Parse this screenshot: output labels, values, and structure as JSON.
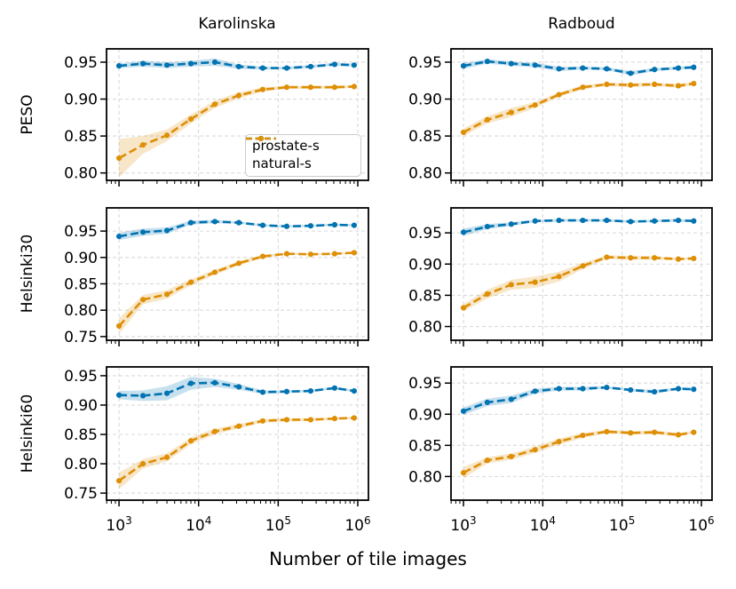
{
  "figure": {
    "column_titles": [
      "Karolinska",
      "Radboud"
    ],
    "row_labels": [
      "PESO",
      "Helsinki30",
      "Helsinki60"
    ],
    "xlabel": "Number of tile images",
    "legend": [
      {
        "label": "prostate-s",
        "color": "#0173b2"
      },
      {
        "label": "natural-s",
        "color": "#de8f05"
      }
    ],
    "colors": {
      "prostate_s": "#0173b2",
      "natural_s": "#de8f05",
      "grid": "#d9d9d9",
      "spine": "#000000",
      "legend_border": "#cccccc"
    }
  },
  "chart_data": [
    {
      "type": "line",
      "row": "PESO",
      "col": "Karolinska",
      "xscale": "log",
      "grid": true,
      "line_style": "dashed-with-dots",
      "x": [
        1000,
        2000,
        4000,
        8000,
        16000,
        32000,
        64000,
        128000,
        256000,
        512000,
        900000
      ],
      "xticks_log10": [
        3,
        4,
        5,
        6
      ],
      "xlim_log10": [
        2.843,
        6.134
      ],
      "ylim": [
        0.79,
        0.968
      ],
      "yticks": [
        0.8,
        0.85,
        0.9,
        0.95
      ],
      "series": [
        {
          "name": "prostate-s",
          "color": "#0173b2",
          "values": [
            0.945,
            0.948,
            0.946,
            0.948,
            0.95,
            0.944,
            0.942,
            0.942,
            0.944,
            0.947,
            0.946
          ],
          "band": [
            0.003,
            0.004,
            0.004,
            0.004,
            0.005,
            0.003,
            0.002,
            0.002,
            0.002,
            0.002,
            0.002
          ]
        },
        {
          "name": "natural-s",
          "color": "#de8f05",
          "values": [
            0.82,
            0.838,
            0.851,
            0.873,
            0.893,
            0.905,
            0.913,
            0.916,
            0.916,
            0.916,
            0.917
          ],
          "band": [
            0.026,
            0.012,
            0.008,
            0.006,
            0.005,
            0.004,
            0.003,
            0.002,
            0.002,
            0.002,
            0.002
          ]
        }
      ]
    },
    {
      "type": "line",
      "row": "PESO",
      "col": "Radboud",
      "xscale": "log",
      "grid": true,
      "line_style": "dashed-with-dots",
      "x": [
        1000,
        2000,
        4000,
        8000,
        16000,
        32000,
        64000,
        128000,
        256000,
        512000,
        800000
      ],
      "xticks_log10": [
        3,
        4,
        5,
        6
      ],
      "xlim_log10": [
        2.843,
        6.134
      ],
      "ylim": [
        0.79,
        0.968
      ],
      "yticks": [
        0.8,
        0.85,
        0.9,
        0.95
      ],
      "series": [
        {
          "name": "prostate-s",
          "color": "#0173b2",
          "values": [
            0.945,
            0.951,
            0.948,
            0.946,
            0.941,
            0.942,
            0.941,
            0.935,
            0.94,
            0.942,
            0.943
          ],
          "band": [
            0.004,
            0.003,
            0.003,
            0.003,
            0.003,
            0.002,
            0.002,
            0.003,
            0.002,
            0.002,
            0.002
          ]
        },
        {
          "name": "natural-s",
          "color": "#de8f05",
          "values": [
            0.855,
            0.872,
            0.882,
            0.892,
            0.906,
            0.916,
            0.92,
            0.919,
            0.92,
            0.918,
            0.921
          ],
          "band": [
            0.005,
            0.005,
            0.006,
            0.004,
            0.003,
            0.003,
            0.002,
            0.003,
            0.002,
            0.003,
            0.002
          ]
        }
      ]
    },
    {
      "type": "line",
      "row": "Helsinki30",
      "col": "Karolinska",
      "xscale": "log",
      "grid": true,
      "line_style": "dashed-with-dots",
      "x": [
        1000,
        2000,
        4000,
        8000,
        16000,
        32000,
        64000,
        128000,
        256000,
        512000,
        900000
      ],
      "xticks_log10": [
        3,
        4,
        5,
        6
      ],
      "xlim_log10": [
        2.843,
        6.134
      ],
      "ylim": [
        0.743,
        0.994
      ],
      "yticks": [
        0.75,
        0.8,
        0.85,
        0.9,
        0.95
      ],
      "series": [
        {
          "name": "prostate-s",
          "color": "#0173b2",
          "values": [
            0.94,
            0.948,
            0.951,
            0.966,
            0.968,
            0.966,
            0.961,
            0.959,
            0.96,
            0.962,
            0.961
          ],
          "band": [
            0.007,
            0.007,
            0.006,
            0.004,
            0.003,
            0.002,
            0.002,
            0.002,
            0.002,
            0.002,
            0.002
          ]
        },
        {
          "name": "natural-s",
          "color": "#de8f05",
          "values": [
            0.77,
            0.82,
            0.83,
            0.853,
            0.872,
            0.889,
            0.902,
            0.907,
            0.906,
            0.907,
            0.909
          ],
          "band": [
            0.015,
            0.009,
            0.008,
            0.006,
            0.005,
            0.004,
            0.003,
            0.002,
            0.002,
            0.002,
            0.002
          ]
        }
      ]
    },
    {
      "type": "line",
      "row": "Helsinki30",
      "col": "Radboud",
      "xscale": "log",
      "grid": true,
      "line_style": "dashed-with-dots",
      "x": [
        1000,
        2000,
        4000,
        8000,
        16000,
        32000,
        64000,
        128000,
        256000,
        512000,
        800000
      ],
      "xticks_log10": [
        3,
        4,
        5,
        6
      ],
      "xlim_log10": [
        2.843,
        6.134
      ],
      "ylim": [
        0.778,
        0.99
      ],
      "yticks": [
        0.8,
        0.85,
        0.9,
        0.95
      ],
      "series": [
        {
          "name": "prostate-s",
          "color": "#0173b2",
          "values": [
            0.951,
            0.96,
            0.964,
            0.969,
            0.97,
            0.97,
            0.97,
            0.968,
            0.969,
            0.97,
            0.969
          ],
          "band": [
            0.006,
            0.004,
            0.003,
            0.002,
            0.002,
            0.002,
            0.002,
            0.002,
            0.002,
            0.002,
            0.002
          ]
        },
        {
          "name": "natural-s",
          "color": "#de8f05",
          "values": [
            0.83,
            0.852,
            0.867,
            0.871,
            0.88,
            0.897,
            0.911,
            0.91,
            0.91,
            0.908,
            0.909
          ],
          "band": [
            0.006,
            0.007,
            0.008,
            0.009,
            0.008,
            0.005,
            0.003,
            0.003,
            0.003,
            0.002,
            0.002
          ]
        }
      ]
    },
    {
      "type": "line",
      "row": "Helsinki60",
      "col": "Karolinska",
      "xscale": "log",
      "grid": true,
      "line_style": "dashed-with-dots",
      "x": [
        1000,
        2000,
        4000,
        8000,
        16000,
        32000,
        64000,
        128000,
        256000,
        512000,
        900000
      ],
      "xticks_log10": [
        3,
        4,
        5,
        6
      ],
      "xlim_log10": [
        2.843,
        6.134
      ],
      "ylim": [
        0.738,
        0.965
      ],
      "yticks": [
        0.75,
        0.8,
        0.85,
        0.9,
        0.95
      ],
      "series": [
        {
          "name": "prostate-s",
          "color": "#0173b2",
          "values": [
            0.917,
            0.916,
            0.92,
            0.937,
            0.938,
            0.931,
            0.922,
            0.923,
            0.924,
            0.929,
            0.924
          ],
          "band": [
            0.007,
            0.009,
            0.012,
            0.011,
            0.007,
            0.005,
            0.003,
            0.002,
            0.002,
            0.002,
            0.002
          ]
        },
        {
          "name": "natural-s",
          "color": "#de8f05",
          "values": [
            0.771,
            0.8,
            0.811,
            0.839,
            0.855,
            0.864,
            0.873,
            0.875,
            0.875,
            0.877,
            0.878
          ],
          "band": [
            0.014,
            0.008,
            0.007,
            0.006,
            0.005,
            0.004,
            0.003,
            0.003,
            0.002,
            0.002,
            0.002
          ]
        }
      ]
    },
    {
      "type": "line",
      "row": "Helsinki60",
      "col": "Radboud",
      "xscale": "log",
      "grid": true,
      "line_style": "dashed-with-dots",
      "x": [
        1000,
        2000,
        4000,
        8000,
        16000,
        32000,
        64000,
        128000,
        256000,
        512000,
        800000
      ],
      "xticks_log10": [
        3,
        4,
        5,
        6
      ],
      "xlim_log10": [
        2.843,
        6.134
      ],
      "ylim": [
        0.762,
        0.976
      ],
      "yticks": [
        0.8,
        0.85,
        0.9,
        0.95
      ],
      "series": [
        {
          "name": "prostate-s",
          "color": "#0173b2",
          "values": [
            0.905,
            0.919,
            0.924,
            0.937,
            0.941,
            0.941,
            0.943,
            0.939,
            0.936,
            0.941,
            0.94
          ],
          "band": [
            0.006,
            0.006,
            0.006,
            0.004,
            0.003,
            0.003,
            0.002,
            0.002,
            0.003,
            0.002,
            0.002
          ]
        },
        {
          "name": "natural-s",
          "color": "#de8f05",
          "values": [
            0.806,
            0.826,
            0.832,
            0.843,
            0.856,
            0.866,
            0.872,
            0.87,
            0.871,
            0.867,
            0.871
          ],
          "band": [
            0.009,
            0.005,
            0.005,
            0.005,
            0.005,
            0.004,
            0.003,
            0.003,
            0.003,
            0.003,
            0.002
          ]
        }
      ]
    }
  ]
}
